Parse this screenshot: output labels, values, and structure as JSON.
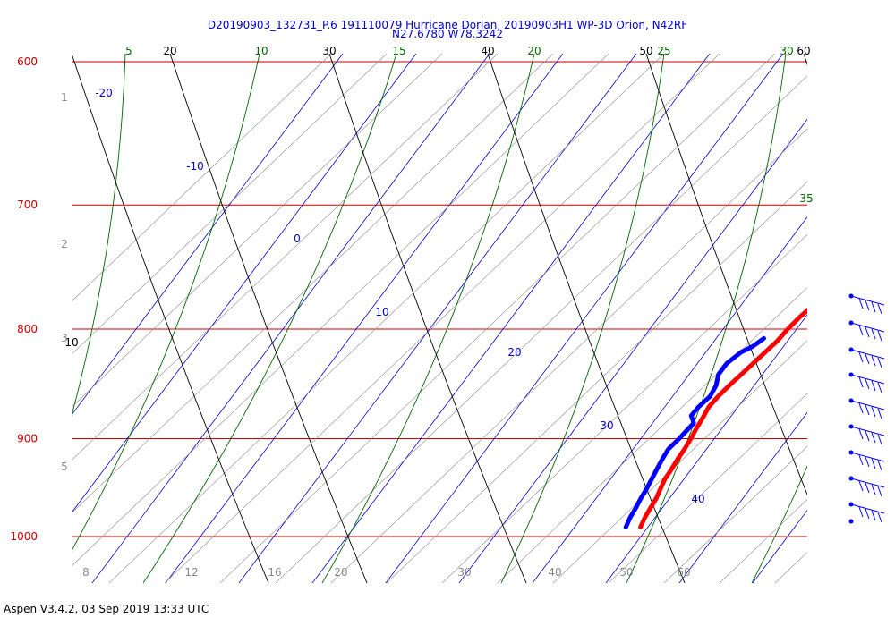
{
  "title_line1": "D20190903_132731_P.6 191110079 Hurricane Dorian, 20190903H1 WP-3D Orion, N42RF",
  "title_line2": "N27.6780 W78.3242",
  "footer": "Aspen V3.4.2, 03 Sep 2019  13:33 UTC",
  "chart_data": {
    "type": "skew-t",
    "pressure_levels": [
      "600",
      "700",
      "800",
      "900",
      "1000"
    ],
    "height_labels": [
      "1",
      "2",
      "3",
      "5"
    ],
    "temperature_isotherm_labels": [
      "-20",
      "-10",
      "0",
      "10",
      "20",
      "30",
      "40"
    ],
    "bottom_axis_labels": [
      "8",
      "12",
      "16",
      "20",
      "30",
      "40",
      "50",
      "60"
    ],
    "top_labels_green": [
      "5",
      "10",
      "15",
      "20",
      "25",
      "30",
      "35"
    ],
    "top_labels_black": [
      "20",
      "30",
      "40",
      "50",
      "60",
      "10"
    ],
    "temperature_profile": [
      [
        762,
        21.0
      ],
      [
        770,
        20.5
      ],
      [
        780,
        19.8
      ],
      [
        790,
        19.2
      ],
      [
        800,
        18.8
      ],
      [
        810,
        18.6
      ],
      [
        820,
        18.1
      ],
      [
        830,
        17.6
      ],
      [
        840,
        17.1
      ],
      [
        850,
        16.6
      ],
      [
        860,
        16.2
      ],
      [
        870,
        16.0
      ],
      [
        880,
        16.3
      ],
      [
        890,
        16.5
      ],
      [
        900,
        16.8
      ],
      [
        910,
        17.0
      ],
      [
        920,
        17.1
      ],
      [
        930,
        17.3
      ],
      [
        940,
        17.4
      ],
      [
        950,
        17.8
      ],
      [
        960,
        18.2
      ],
      [
        970,
        18.4
      ],
      [
        980,
        18.6
      ],
      [
        990,
        19.0
      ]
    ],
    "dewpoint_profile": [
      [
        808,
        16.5
      ],
      [
        815,
        15.8
      ],
      [
        820,
        14.8
      ],
      [
        830,
        14.0
      ],
      [
        840,
        14.0
      ],
      [
        850,
        14.8
      ],
      [
        860,
        15.1
      ],
      [
        870,
        14.6
      ],
      [
        878,
        14.5
      ],
      [
        885,
        15.6
      ],
      [
        900,
        15.2
      ],
      [
        910,
        14.8
      ],
      [
        920,
        15.0
      ],
      [
        930,
        15.3
      ],
      [
        940,
        15.6
      ],
      [
        950,
        15.9
      ],
      [
        960,
        16.1
      ],
      [
        970,
        16.4
      ],
      [
        980,
        16.6
      ],
      [
        990,
        17.0
      ]
    ],
    "colors": {
      "isobar": "#cc0000",
      "isotherm": "#0000cc",
      "dry_adiabat": "#000000",
      "moist_adiabat": "#006600",
      "mixing_ratio": "#888888",
      "temperature": "#ff0000",
      "dewpoint": "#0000ff",
      "wind_barb": "#0000ff",
      "title": "#0000cc"
    }
  }
}
